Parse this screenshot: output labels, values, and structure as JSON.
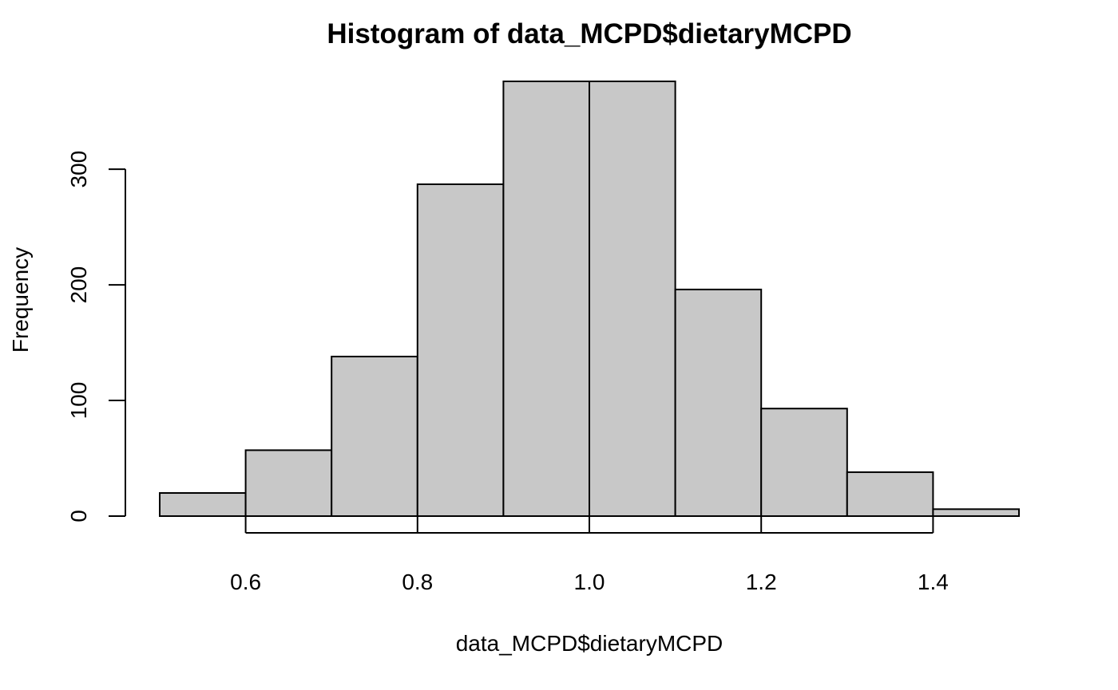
{
  "chart_data": {
    "type": "bar",
    "title": "Histogram of data_MCPD$dietaryMCPD",
    "xlabel": "data_MCPD$dietaryMCPD",
    "ylabel": "Frequency",
    "bins": [
      {
        "x0": 0.5,
        "x1": 0.6,
        "count": 20
      },
      {
        "x0": 0.6,
        "x1": 0.7,
        "count": 57
      },
      {
        "x0": 0.7,
        "x1": 0.8,
        "count": 138
      },
      {
        "x0": 0.8,
        "x1": 0.9,
        "count": 287
      },
      {
        "x0": 0.9,
        "x1": 1.0,
        "count": 376
      },
      {
        "x0": 1.0,
        "x1": 1.1,
        "count": 376
      },
      {
        "x0": 1.1,
        "x1": 1.2,
        "count": 196
      },
      {
        "x0": 1.2,
        "x1": 1.3,
        "count": 93
      },
      {
        "x0": 1.3,
        "x1": 1.4,
        "count": 38
      },
      {
        "x0": 1.4,
        "x1": 1.5,
        "count": 6
      }
    ],
    "xlim": [
      0.5,
      1.5
    ],
    "ylim": [
      0,
      376
    ],
    "x_ticks": [
      0.6,
      0.8,
      1.0,
      1.2,
      1.4
    ],
    "x_tick_labels": [
      "0.6",
      "0.8",
      "1.0",
      "1.2",
      "1.4"
    ],
    "y_ticks": [
      0,
      100,
      200,
      300
    ],
    "y_tick_labels": [
      "0",
      "100",
      "200",
      "300"
    ],
    "bar_fill": "#c8c8c8",
    "bar_stroke": "#000000",
    "grid": false,
    "legend": "none"
  }
}
